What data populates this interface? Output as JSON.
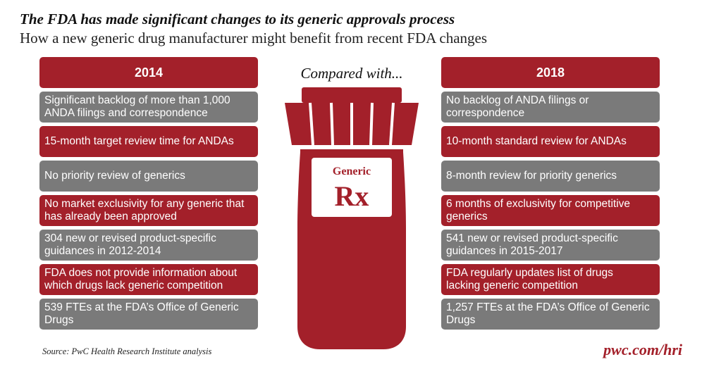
{
  "header": {
    "title": "The FDA has made significant changes to its generic approvals process",
    "subtitle": "How a new generic drug manufacturer might benefit from recent FDA changes"
  },
  "left": {
    "year": "2014",
    "items": [
      {
        "text": "Significant backlog of more than 1,000 ANDA filings and correspondence",
        "style": "gray"
      },
      {
        "text": "15-month target review time for ANDAs",
        "style": "red"
      },
      {
        "text": "No priority review of generics",
        "style": "gray"
      },
      {
        "text": "No market exclusivity for any generic that has already been approved",
        "style": "red"
      },
      {
        "text": "304 new or revised product-specific guidances in 2012-2014",
        "style": "gray"
      },
      {
        "text": "FDA does not provide information about which drugs lack generic competition",
        "style": "red"
      },
      {
        "text": "539 FTEs at the FDA’s Office of Generic Drugs",
        "style": "gray"
      }
    ]
  },
  "center": {
    "compared": "Compared with...",
    "label_top": "Generic",
    "label_bottom": "Rx"
  },
  "right": {
    "year": "2018",
    "items": [
      {
        "text": "No backlog of ANDA filings or correspondence",
        "style": "gray"
      },
      {
        "text": "10-month standard review for ANDAs",
        "style": "red"
      },
      {
        "text": "8-month review for priority generics",
        "style": "gray"
      },
      {
        "text": "6 months of exclusivity for competitive generics",
        "style": "red"
      },
      {
        "text": "541 new or revised product-specific guidances in 2015-2017",
        "style": "gray"
      },
      {
        "text": "FDA regularly updates list of drugs lacking generic competition",
        "style": "red"
      },
      {
        "text": "1,257 FTEs at the FDA’s Office of Generic Drugs",
        "style": "gray"
      }
    ]
  },
  "footer": {
    "source": "Source: PwC Health Research Institute analysis",
    "brand": "pwc.com/hri"
  },
  "colors": {
    "accent_red": "#a3202a",
    "gray": "#7a7a7a"
  }
}
